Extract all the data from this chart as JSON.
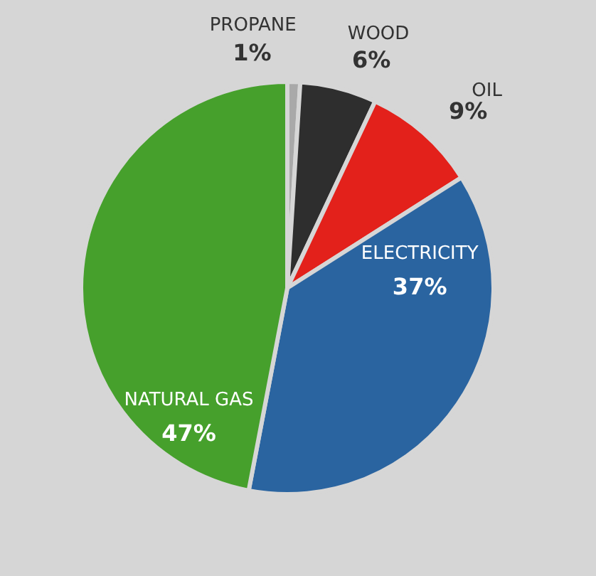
{
  "chart_data": {
    "type": "pie",
    "categories": [
      "PROPANE",
      "WOOD",
      "OIL",
      "ELECTRICITY",
      "NATURAL GAS"
    ],
    "values": [
      1,
      6,
      9,
      37,
      47
    ],
    "colors": [
      "#a9a9a9",
      "#2e2e2e",
      "#e3211b",
      "#2a64a0",
      "#46a02c"
    ],
    "value_labels": [
      "1%",
      "6%",
      "9%",
      "37%",
      "47%"
    ]
  }
}
